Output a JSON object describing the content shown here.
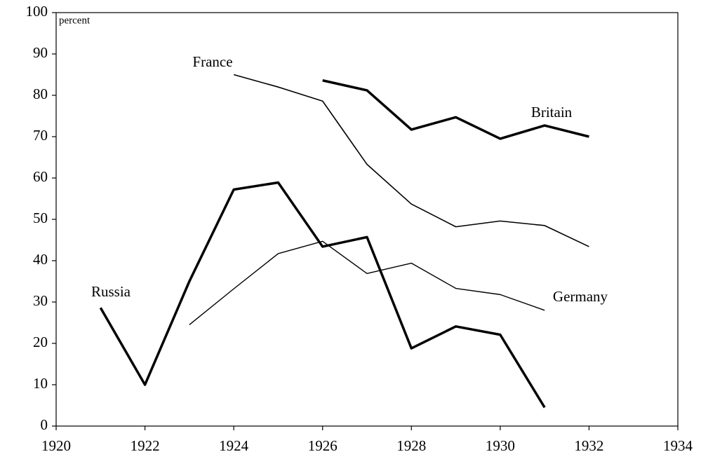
{
  "chart_data": {
    "type": "line",
    "y_label": "percent",
    "x": [
      1921,
      1922,
      1923,
      1924,
      1925,
      1926,
      1927,
      1928,
      1929,
      1930,
      1931,
      1932
    ],
    "series": [
      {
        "name": "Russia",
        "color": "#000000",
        "width": 3.5,
        "values": [
          28.6,
          10,
          35,
          57.2,
          58.9,
          43.4,
          45.7,
          18.8,
          24.1,
          22.1,
          4.5,
          null
        ]
      },
      {
        "name": "France",
        "color": "#000000",
        "width": 1.6,
        "values": [
          null,
          null,
          null,
          85,
          82,
          78.6,
          63.3,
          53.7,
          48.2,
          49.6,
          48.5,
          43.4
        ]
      },
      {
        "name": "Britain",
        "color": "#000000",
        "width": 3.5,
        "values": [
          null,
          null,
          null,
          null,
          null,
          83.6,
          81.2,
          71.7,
          74.7,
          69.5,
          72.7,
          70
        ]
      },
      {
        "name": "Germany",
        "color": "#000000",
        "width": 1.4,
        "values": [
          null,
          null,
          24.5,
          33.2,
          41.7,
          44.7,
          36.9,
          39.4,
          33.3,
          31.8,
          28,
          null
        ]
      }
    ],
    "xlim": [
      1920,
      1934
    ],
    "xticks": [
      1920,
      1922,
      1924,
      1926,
      1928,
      1930,
      1932,
      1934
    ],
    "ylim": [
      0,
      100
    ],
    "yticks": [
      0,
      10,
      20,
      30,
      40,
      50,
      60,
      70,
      80,
      90,
      100
    ],
    "grid": false
  }
}
